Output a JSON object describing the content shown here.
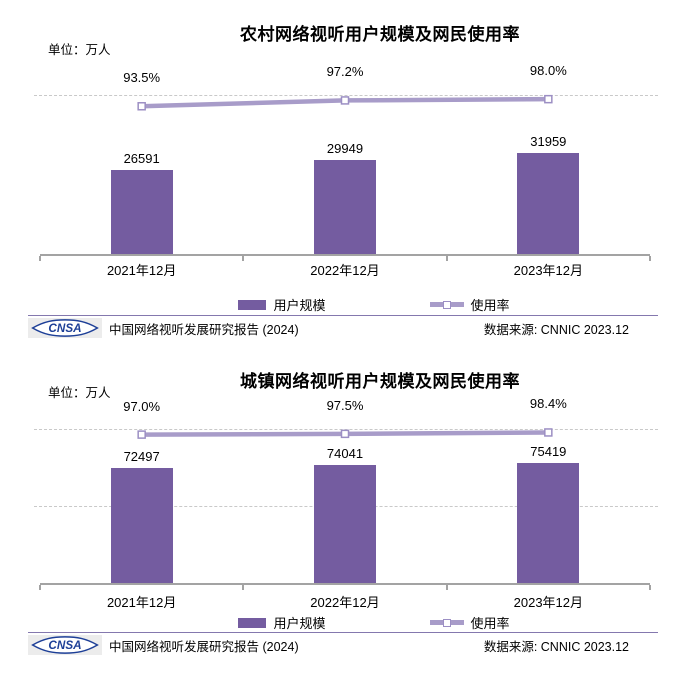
{
  "colors": {
    "bar": "#745CA0",
    "line": "#A89CC9",
    "marker": "#9C8FC4",
    "grid": "#C9C9C9",
    "axis": "#A3A3A3",
    "separator": "#8478AE",
    "logo_blue": "#1D3F97"
  },
  "legend": {
    "bar_label": "用户规模",
    "line_label": "使用率"
  },
  "footer": {
    "logo_text": "CNSA",
    "report_title": "中国网络视听发展研究报告 (2024)",
    "data_source": "数据来源: CNNIC 2023.12"
  },
  "chart_data": [
    {
      "type": "bar",
      "combo": "bar+line",
      "title": "农村网络视听用户规模及网民使用率",
      "unit_label": "单位：万人",
      "categories": [
        "2021年12月",
        "2022年12月",
        "2023年12月"
      ],
      "series": [
        {
          "name": "用户规模",
          "type": "bar",
          "axis": "primary",
          "values": [
            26591,
            29949,
            31959
          ],
          "labels": [
            "26591",
            "29949",
            "31959"
          ]
        },
        {
          "name": "使用率",
          "type": "line",
          "axis": "secondary",
          "values": [
            93.5,
            97.2,
            98.0
          ],
          "labels": [
            "93.5%",
            "97.2%",
            "98.0%"
          ]
        }
      ],
      "secondary_axis": {
        "range_pct": [
          0,
          100
        ],
        "gridlines_pct": [
          100
        ],
        "grid_style": "dashed"
      },
      "legend_position": "bottom"
    },
    {
      "type": "bar",
      "combo": "bar+line",
      "title": "城镇网络视听用户规模及网民使用率",
      "unit_label": "单位：万人",
      "categories": [
        "2021年12月",
        "2022年12月",
        "2023年12月"
      ],
      "series": [
        {
          "name": "用户规模",
          "type": "bar",
          "axis": "primary",
          "values": [
            72497,
            74041,
            75419
          ],
          "labels": [
            "72497",
            "74041",
            "75419"
          ]
        },
        {
          "name": "使用率",
          "type": "line",
          "axis": "secondary",
          "values": [
            97.0,
            97.5,
            98.4
          ],
          "labels": [
            "97.0%",
            "97.5%",
            "98.4%"
          ]
        }
      ],
      "secondary_axis": {
        "range_pct": [
          0,
          100
        ],
        "gridlines_pct": [
          100,
          50
        ],
        "grid_style": "dashed"
      },
      "legend_position": "bottom"
    }
  ]
}
